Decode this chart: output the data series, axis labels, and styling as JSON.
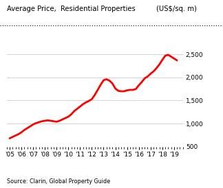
{
  "title_left": "Average Price,  Residential Properties",
  "title_right": "(US$/sq. m)",
  "source": "Source: Clarin, Global Property Guide",
  "line_color": "#ff0000",
  "background_color": "#ffffff",
  "grid_color": "#cccccc",
  "ylim": [
    500,
    2700
  ],
  "yticks": [
    500,
    1000,
    1500,
    2000,
    2500
  ],
  "x_years": [
    2005,
    2006,
    2007,
    2008,
    2009,
    2010,
    2011,
    2012,
    2013,
    2014,
    2015,
    2016,
    2017,
    2018,
    2019
  ],
  "x_labels": [
    "'05",
    "'06",
    "'07",
    "'08",
    "'09",
    "'10",
    "'11",
    "'12",
    "'13",
    "'14",
    "'15",
    "'16",
    "'17",
    "'18",
    "'19"
  ],
  "data_x": [
    2005.0,
    2005.25,
    2005.5,
    2005.75,
    2006.0,
    2006.25,
    2006.5,
    2006.75,
    2007.0,
    2007.25,
    2007.5,
    2007.75,
    2008.0,
    2008.25,
    2008.5,
    2008.75,
    2009.0,
    2009.25,
    2009.5,
    2009.75,
    2010.0,
    2010.25,
    2010.5,
    2010.75,
    2011.0,
    2011.25,
    2011.5,
    2011.75,
    2012.0,
    2012.25,
    2012.5,
    2012.75,
    2013.0,
    2013.25,
    2013.5,
    2013.75,
    2014.0,
    2014.25,
    2014.5,
    2014.75,
    2015.0,
    2015.25,
    2015.5,
    2015.75,
    2016.0,
    2016.25,
    2016.5,
    2016.75,
    2017.0,
    2017.25,
    2017.5,
    2017.75,
    2018.0,
    2018.25,
    2018.5,
    2018.75,
    2019.0,
    2019.25
  ],
  "data_y": [
    680,
    710,
    740,
    770,
    810,
    860,
    900,
    940,
    980,
    1010,
    1030,
    1050,
    1060,
    1070,
    1060,
    1050,
    1040,
    1060,
    1090,
    1120,
    1150,
    1200,
    1270,
    1320,
    1370,
    1420,
    1460,
    1490,
    1530,
    1620,
    1730,
    1840,
    1940,
    1960,
    1930,
    1870,
    1760,
    1710,
    1700,
    1700,
    1720,
    1730,
    1730,
    1750,
    1830,
    1900,
    1980,
    2020,
    2080,
    2130,
    2200,
    2280,
    2380,
    2470,
    2490,
    2450,
    2410,
    2370
  ]
}
